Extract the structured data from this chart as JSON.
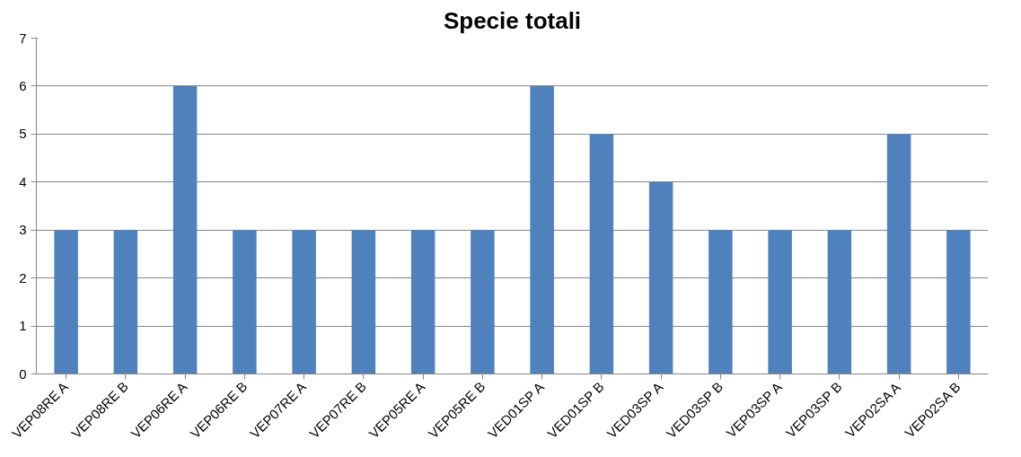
{
  "chart_data": {
    "type": "bar",
    "title": "Specie totali",
    "categories": [
      "VEP08RE A",
      "VEP08RE B",
      "VEP06RE A",
      "VEP06RE B",
      "VEP07RE A",
      "VEP07RE B",
      "VEP05RE A",
      "VEP05RE B",
      "VED01SP A",
      "VED01SP B",
      "VED03SP A",
      "VED03SP B",
      "VEP03SP A",
      "VEP03SP B",
      "VEP02SA A",
      "VEP02SA B"
    ],
    "values": [
      3,
      3,
      6,
      3,
      3,
      3,
      3,
      3,
      6,
      5,
      4,
      3,
      3,
      3,
      5,
      3
    ],
    "color": "#4f81bd",
    "ylim": [
      0,
      7
    ],
    "yticks": [
      0,
      1,
      2,
      3,
      4,
      5,
      6,
      7
    ],
    "grid": "y"
  }
}
